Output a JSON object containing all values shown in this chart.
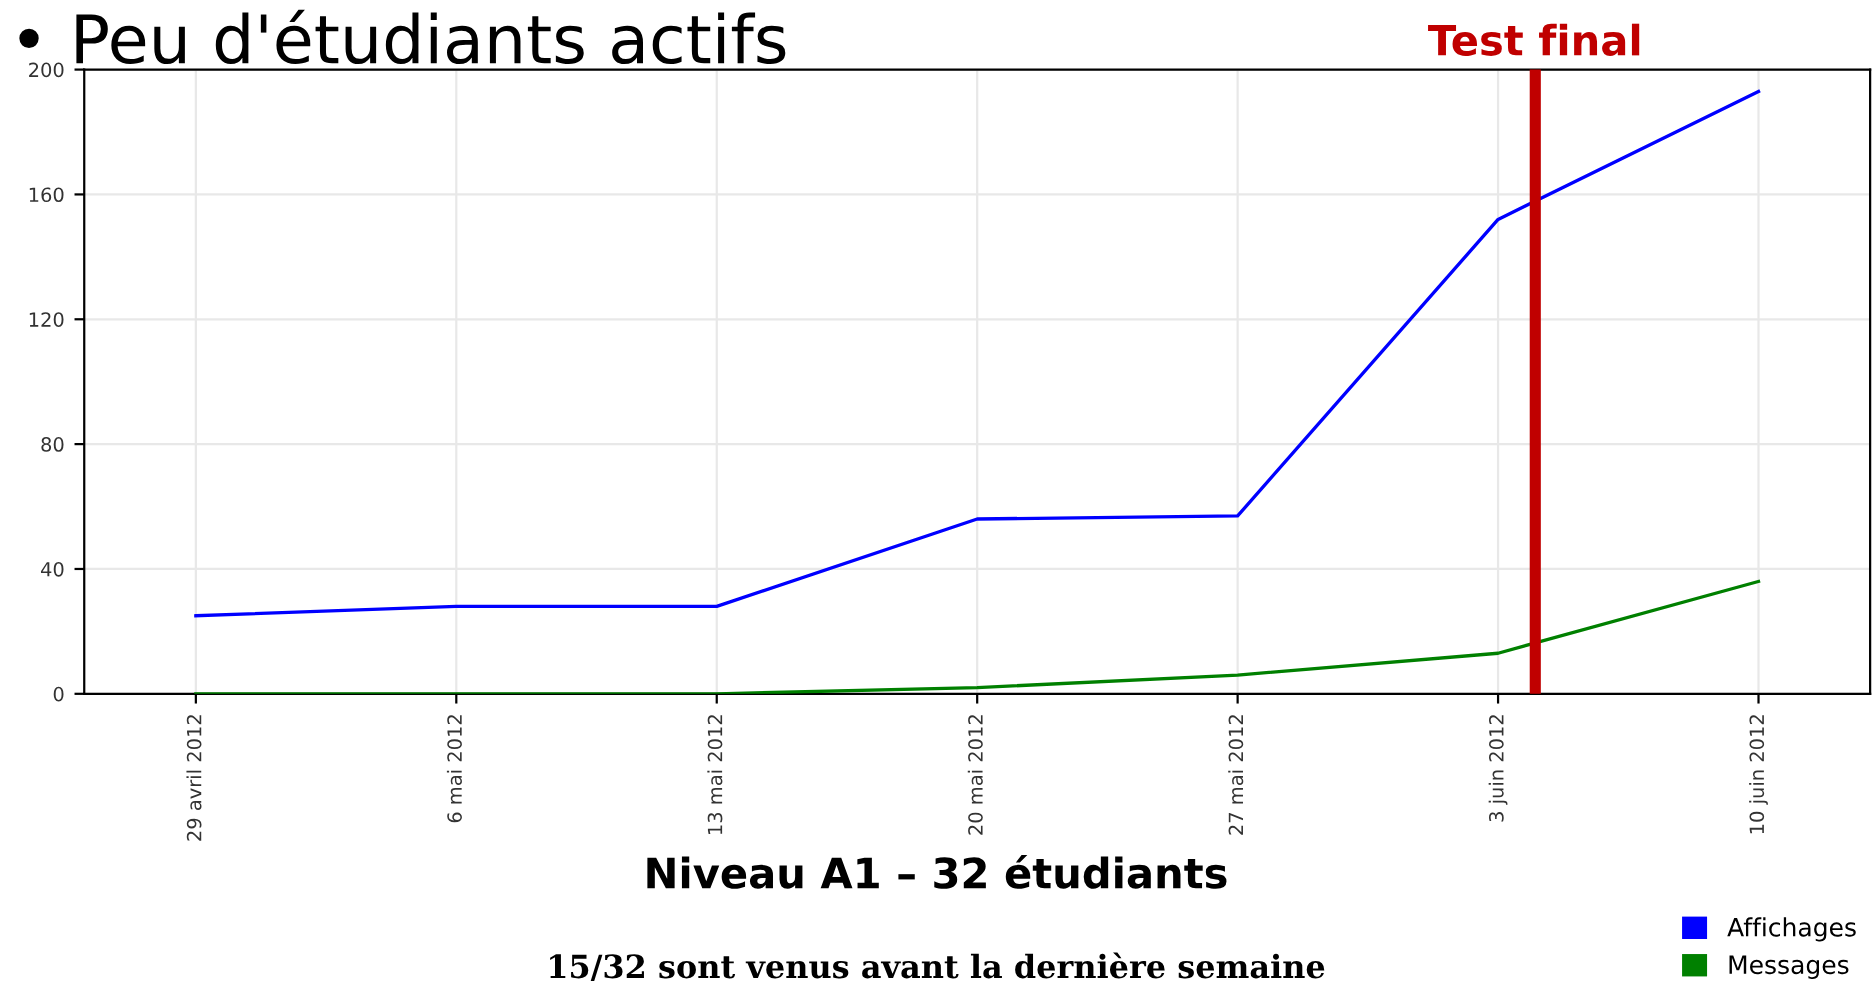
{
  "chart_data": {
    "type": "line",
    "title": "• Peu d'étudiants actifs",
    "xlabel": "Niveau A1 – 32 étudiants",
    "annotations": [
      "15/32 sont venus avant la dernière semaine"
    ],
    "x": [
      "2012-04-29",
      "2012-05-06",
      "2012-05-13",
      "2012-05-20",
      "2012-05-27",
      "2012-06-03",
      "2012-06-10"
    ],
    "series": [
      {
        "name": "Affichages",
        "color": "#0000ff",
        "values": [
          25,
          28,
          28,
          56,
          57,
          152,
          193
        ]
      },
      {
        "name": "Messages",
        "color": "#008000",
        "values": [
          0,
          0,
          0,
          2,
          6,
          13,
          36
        ]
      }
    ],
    "xlim": [
      "2012-04-26",
      "2012-06-13"
    ],
    "xticks": [
      {
        "value": "2012-04-29",
        "label": "29 avril 2012"
      },
      {
        "value": "2012-05-06",
        "label": "6 mai 2012"
      },
      {
        "value": "2012-05-13",
        "label": "13 mai 2012"
      },
      {
        "value": "2012-05-20",
        "label": "20 mai 2012"
      },
      {
        "value": "2012-05-27",
        "label": "27 mai 2012"
      },
      {
        "value": "2012-06-03",
        "label": "3 juin 2012"
      },
      {
        "value": "2012-06-10",
        "label": "10 juin 2012"
      }
    ],
    "ylim": [
      0,
      200
    ],
    "yticks": [
      0,
      40,
      80,
      120,
      160,
      200
    ],
    "ref_lines": [
      {
        "axis": "x",
        "value": "2012-06-04",
        "label": "Test final",
        "color": "#c00000"
      }
    ],
    "grid": true,
    "legend": "bottom right",
    "marker": "none",
    "line_style": "solid"
  }
}
